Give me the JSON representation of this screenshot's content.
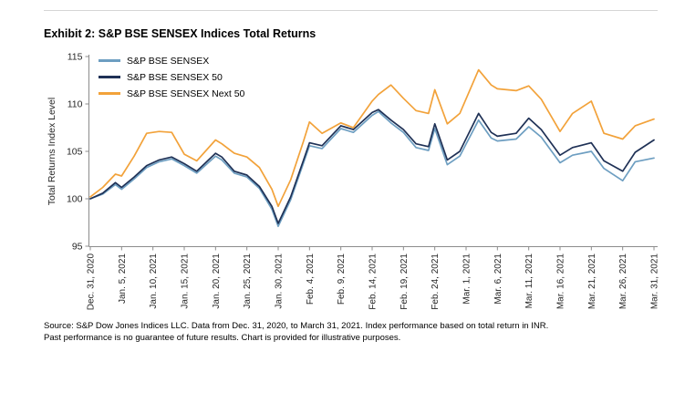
{
  "header": {
    "title": "Exhibit 2: S&P BSE SENSEX Indices Total Returns"
  },
  "chart_data": {
    "type": "line",
    "title": "Exhibit 2: S&P BSE SENSEX Indices Total Returns",
    "xlabel": "",
    "ylabel": "Total Returns Index Level",
    "ylim": [
      95,
      115
    ],
    "yticks": [
      95,
      100,
      105,
      110,
      115
    ],
    "grid": false,
    "legend_position": "top-left",
    "x_unit": "calendar days since Dec. 31, 2020",
    "x": [
      0,
      2,
      4,
      5,
      7,
      9,
      11,
      13,
      15,
      17,
      20,
      21,
      23,
      25,
      27,
      29,
      30,
      32,
      34,
      35,
      37,
      40,
      42,
      45,
      46,
      48,
      50,
      52,
      54,
      55,
      57,
      59,
      62,
      64,
      65,
      68,
      70,
      72,
      75,
      77,
      80,
      82,
      85,
      87,
      90
    ],
    "xtick_days": [
      0,
      5,
      10,
      15,
      20,
      25,
      30,
      35,
      40,
      45,
      50,
      55,
      60,
      65,
      70,
      75,
      80,
      85,
      90
    ],
    "xtick_labels": [
      "Dec. 31, 2020",
      "Jan. 5, 2021",
      "Jan. 10, 2021",
      "Jan. 15, 2021",
      "Jan. 20, 2021",
      "Jan. 25, 2021",
      "Jan. 30, 2021",
      "Feb. 4, 2021",
      "Feb. 9, 2021",
      "Feb. 14, 2021",
      "Feb. 19, 2021",
      "Feb. 24, 2021",
      "Mar. 1, 2021",
      "Mar. 6, 2021",
      "Mar. 11, 2021",
      "Mar. 16, 2021",
      "Mar. 21, 2021",
      "Mar. 26, 2021",
      "Mar. 31, 2021"
    ],
    "series": [
      {
        "name": "S&P BSE SENSEX",
        "color": "#6D9EC1",
        "values": [
          100.0,
          100.5,
          101.5,
          101.0,
          102.1,
          103.3,
          103.9,
          104.2,
          103.5,
          102.7,
          104.5,
          104.1,
          102.7,
          102.3,
          101.1,
          98.9,
          97.1,
          99.9,
          103.7,
          105.6,
          105.3,
          107.4,
          107.0,
          108.8,
          109.2,
          108.0,
          107.0,
          105.4,
          105.1,
          107.4,
          103.6,
          104.5,
          108.3,
          106.4,
          106.1,
          106.3,
          107.6,
          106.5,
          103.8,
          104.6,
          105.0,
          103.2,
          101.9,
          103.9,
          104.3
        ]
      },
      {
        "name": "S&P BSE SENSEX 50",
        "color": "#1F3156",
        "values": [
          100.0,
          100.6,
          101.7,
          101.2,
          102.3,
          103.5,
          104.1,
          104.4,
          103.7,
          102.9,
          104.8,
          104.4,
          102.9,
          102.5,
          101.3,
          99.2,
          97.4,
          100.2,
          104.0,
          105.9,
          105.6,
          107.7,
          107.3,
          109.1,
          109.4,
          108.3,
          107.3,
          105.8,
          105.5,
          107.9,
          104.1,
          105.0,
          109.0,
          107.0,
          106.6,
          106.9,
          108.5,
          107.3,
          104.6,
          105.4,
          105.9,
          104.0,
          102.9,
          104.9,
          106.2
        ]
      },
      {
        "name": "S&P BSE SENSEX Next 50",
        "color": "#F2A23A",
        "values": [
          100.2,
          101.2,
          102.6,
          102.4,
          104.5,
          106.9,
          107.1,
          107.0,
          104.7,
          104.0,
          106.2,
          105.8,
          104.8,
          104.4,
          103.3,
          101.0,
          99.2,
          102.0,
          106.0,
          108.1,
          106.9,
          108.0,
          107.5,
          110.3,
          111.0,
          112.0,
          110.6,
          109.3,
          109.0,
          111.5,
          107.9,
          109.0,
          113.6,
          112.0,
          111.6,
          111.4,
          111.9,
          110.5,
          107.1,
          109.0,
          110.3,
          106.9,
          106.3,
          107.7,
          108.4
        ]
      }
    ]
  },
  "footer": {
    "source_line1": "Source: S&P Dow Jones Indices LLC. Data from Dec. 31, 2020, to March 31, 2021. Index performance based on total return in INR.",
    "source_line2": "Past performance is no guarantee of future results. Chart is provided for illustrative purposes."
  }
}
